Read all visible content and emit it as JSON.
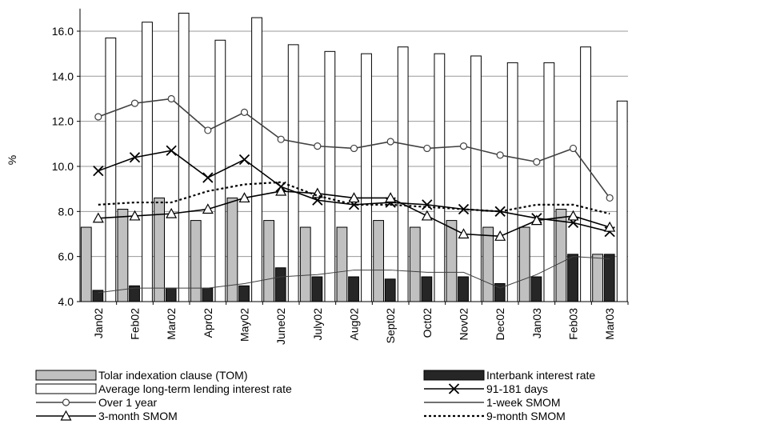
{
  "chart_data": {
    "type": "bar",
    "ylabel": "%",
    "categories": [
      "Jan02",
      "Feb02",
      "Mar02",
      "Apr02",
      "May02",
      "June02",
      "July02",
      "Aug02",
      "Sept02",
      "Oct02",
      "Nov02",
      "Dec02",
      "Jan03",
      "Feb03",
      "Mar03"
    ],
    "ylim": [
      4,
      17
    ],
    "yticks": [
      {
        "value": 4,
        "label": "4.0"
      },
      {
        "value": 6,
        "label": "6.0"
      },
      {
        "value": 8,
        "label": "8.0"
      },
      {
        "value": 10,
        "label": "10.0"
      },
      {
        "value": 12,
        "label": "12.0"
      },
      {
        "value": 14,
        "label": "14.0"
      },
      {
        "value": 16,
        "label": "16.0"
      }
    ],
    "grid": true,
    "series": [
      {
        "name": "Tolar indexation clause (TOM)",
        "type": "bar",
        "color": "#c0c0c0",
        "values": [
          7.3,
          8.1,
          8.6,
          7.6,
          8.6,
          7.6,
          7.3,
          7.3,
          7.6,
          7.3,
          7.6,
          7.3,
          7.3,
          8.1,
          6.1
        ]
      },
      {
        "name": "Interbank interest rate",
        "type": "bar",
        "color": "#262626",
        "values": [
          4.5,
          4.7,
          4.6,
          4.6,
          4.7,
          5.5,
          5.1,
          5.1,
          5.0,
          5.1,
          5.1,
          4.8,
          5.1,
          6.1,
          6.1
        ]
      },
      {
        "name": "Average long-term lending interest rate",
        "type": "bar",
        "color": "#ffffff",
        "values": [
          15.7,
          16.4,
          16.8,
          15.6,
          16.6,
          15.4,
          15.1,
          15.0,
          15.3,
          15.0,
          14.9,
          14.6,
          14.6,
          15.3,
          12.9
        ]
      },
      {
        "name": "91-181 days",
        "type": "line",
        "color": "#000000",
        "marker": "x",
        "dash": "solid",
        "values": [
          9.8,
          10.4,
          10.7,
          9.5,
          10.3,
          9.1,
          8.5,
          8.3,
          8.4,
          8.3,
          8.1,
          8.0,
          7.7,
          7.5,
          7.1
        ]
      },
      {
        "name": "Over 1 year",
        "type": "line",
        "color": "#404040",
        "marker": "circle",
        "dash": "solid",
        "values": [
          12.2,
          12.8,
          13.0,
          11.6,
          12.4,
          11.2,
          10.9,
          10.8,
          11.1,
          10.8,
          10.9,
          10.5,
          10.2,
          10.8,
          8.6
        ]
      },
      {
        "name": "1-week SMOM",
        "type": "line",
        "color": "#404040",
        "marker": "none",
        "dash": "solid",
        "values": [
          4.4,
          4.6,
          4.6,
          4.6,
          4.8,
          5.1,
          5.2,
          5.4,
          5.4,
          5.3,
          5.3,
          4.6,
          5.2,
          6.0,
          5.9
        ]
      },
      {
        "name": "3-month SMOM",
        "type": "line",
        "color": "#000000",
        "marker": "triangle",
        "dash": "solid",
        "values": [
          7.7,
          7.8,
          7.9,
          8.1,
          8.6,
          8.9,
          8.8,
          8.6,
          8.6,
          7.8,
          7.0,
          6.9,
          7.6,
          7.8,
          7.3
        ]
      },
      {
        "name": "9-month SMOM",
        "type": "line",
        "color": "#000000",
        "marker": "none",
        "dash": "dotted",
        "values": [
          8.3,
          8.4,
          8.4,
          8.9,
          9.2,
          9.3,
          8.7,
          8.3,
          8.3,
          8.2,
          8.1,
          8.0,
          8.3,
          8.3,
          7.9
        ]
      }
    ]
  }
}
